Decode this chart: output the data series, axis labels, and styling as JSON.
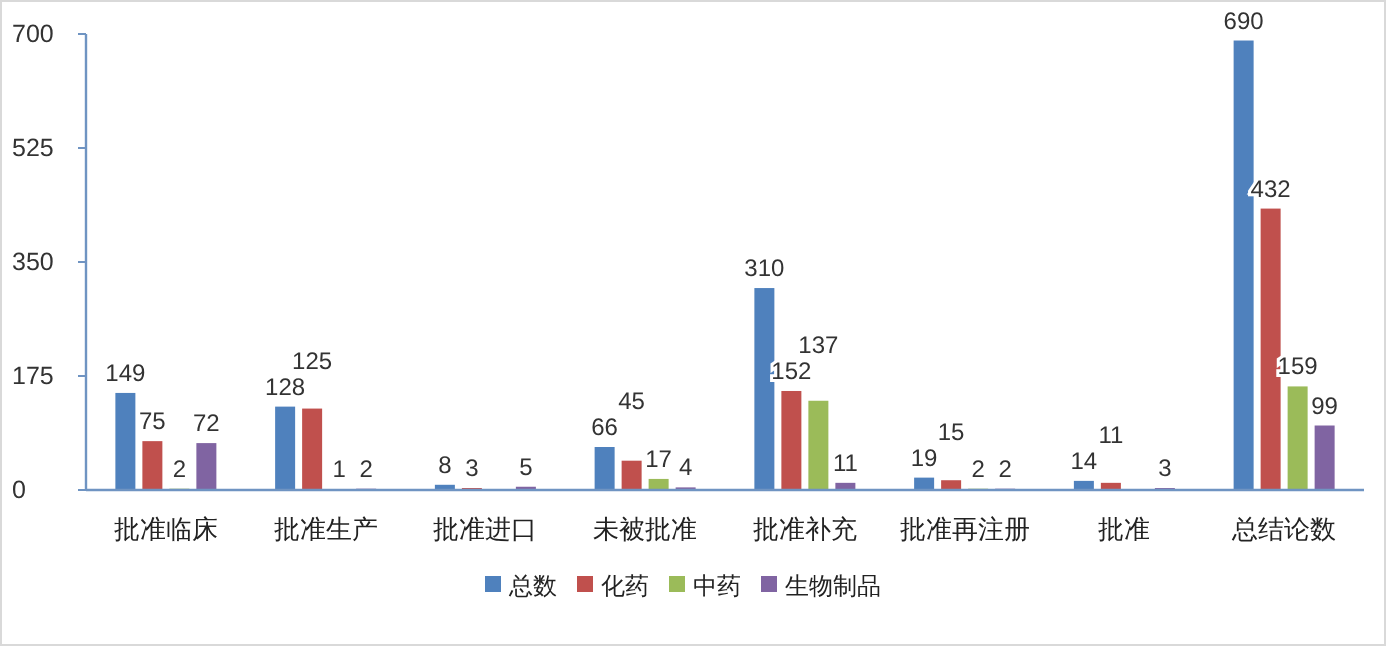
{
  "chart_data": {
    "type": "bar",
    "categories": [
      "批准临床",
      "批准生产",
      "批准进口",
      "未被批准",
      "批准补充",
      "批准再注册",
      "批准",
      "总结论数"
    ],
    "series": [
      {
        "name": "总数",
        "color": "#4f81bd",
        "values": [
          149,
          128,
          8,
          66,
          310,
          19,
          14,
          690
        ]
      },
      {
        "name": "化药",
        "color": "#c0504d",
        "values": [
          75,
          125,
          3,
          45,
          152,
          15,
          11,
          432
        ]
      },
      {
        "name": "中药",
        "color": "#9bbb59",
        "values": [
          2,
          1,
          null,
          17,
          137,
          2,
          null,
          159
        ]
      },
      {
        "name": "生物制品",
        "color": "#8064a2",
        "values": [
          72,
          2,
          5,
          4,
          11,
          2,
          3,
          99
        ]
      }
    ],
    "ylim": [
      0,
      700
    ],
    "yticks": [
      0,
      175,
      350,
      525,
      700
    ],
    "data_labels": true,
    "legend": "bottom",
    "grid": false
  }
}
